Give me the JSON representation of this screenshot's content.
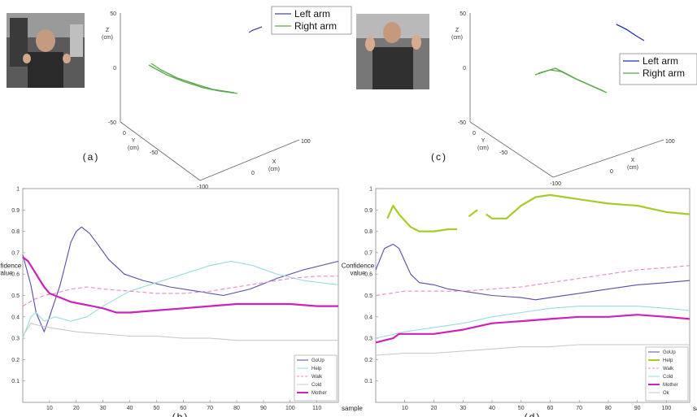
{
  "chart_data": [
    {
      "panel": "(a)",
      "type": "line3d",
      "axes": {
        "z_label": "Z\n(cm)",
        "z_ticks": [
          "50",
          "0",
          "-50"
        ],
        "y_label": "Y\n(cm)",
        "y_ticks": [
          "0",
          "-50"
        ],
        "x_label": "X\n(cm)",
        "x_ticks": [
          "100",
          "0",
          "-100"
        ]
      },
      "legend": [
        "Left arm",
        "Right arm"
      ],
      "legend_position": "top-right",
      "colors": {
        "Left arm": "#4a4a9a",
        "Right arm": "#5aa84a"
      }
    },
    {
      "panel": "(b)",
      "type": "line",
      "ylabel": "Confidence value",
      "xlabel": "sample",
      "xlim": [
        0,
        118
      ],
      "ylim": [
        0,
        1
      ],
      "xticks": [
        10,
        20,
        30,
        40,
        50,
        60,
        70,
        80,
        90,
        100,
        110
      ],
      "yticks": [
        0.1,
        0.2,
        0.3,
        0.4,
        0.5,
        0.6,
        0.7,
        0.8,
        0.9,
        1
      ],
      "legend_position": "bottom-right",
      "series": [
        {
          "name": "GoUp",
          "color": "#5a4aa8",
          "style": "solid",
          "x": [
            0,
            3,
            5,
            8,
            10,
            14,
            18,
            20,
            22,
            25,
            28,
            32,
            38,
            45,
            55,
            65,
            75,
            85,
            95,
            105,
            118
          ],
          "y": [
            0.69,
            0.55,
            0.42,
            0.33,
            0.4,
            0.55,
            0.75,
            0.8,
            0.82,
            0.79,
            0.74,
            0.67,
            0.6,
            0.57,
            0.54,
            0.52,
            0.5,
            0.53,
            0.58,
            0.62,
            0.66
          ]
        },
        {
          "name": "Help",
          "color": "#9adbe0",
          "style": "solid",
          "x": [
            0,
            3,
            5,
            8,
            12,
            18,
            24,
            30,
            40,
            50,
            60,
            70,
            78,
            86,
            95,
            105,
            118
          ],
          "y": [
            0.3,
            0.4,
            0.42,
            0.38,
            0.4,
            0.38,
            0.4,
            0.45,
            0.52,
            0.56,
            0.6,
            0.64,
            0.66,
            0.64,
            0.6,
            0.57,
            0.55
          ]
        },
        {
          "name": "Walk",
          "color": "#e888c8",
          "style": "dashed",
          "x": [
            0,
            4,
            8,
            12,
            18,
            24,
            30,
            40,
            50,
            60,
            70,
            80,
            90,
            100,
            110,
            118
          ],
          "y": [
            0.45,
            0.48,
            0.5,
            0.51,
            0.53,
            0.54,
            0.53,
            0.52,
            0.51,
            0.51,
            0.52,
            0.54,
            0.56,
            0.58,
            0.59,
            0.59
          ]
        },
        {
          "name": "Cold",
          "color": "#c9c9c9",
          "style": "solid",
          "x": [
            0,
            3,
            6,
            10,
            20,
            30,
            40,
            50,
            60,
            70,
            80,
            90,
            100,
            110,
            118
          ],
          "y": [
            0.31,
            0.37,
            0.36,
            0.35,
            0.33,
            0.32,
            0.31,
            0.31,
            0.3,
            0.3,
            0.29,
            0.29,
            0.29,
            0.29,
            0.29
          ]
        },
        {
          "name": "Mother",
          "color": "#cc22bb",
          "style": "bold",
          "x": [
            0,
            2,
            4,
            6,
            8,
            10,
            14,
            18,
            22,
            26,
            30,
            35,
            40,
            50,
            60,
            70,
            80,
            90,
            100,
            110,
            118
          ],
          "y": [
            0.68,
            0.66,
            0.62,
            0.58,
            0.54,
            0.51,
            0.49,
            0.47,
            0.46,
            0.45,
            0.44,
            0.42,
            0.42,
            0.43,
            0.44,
            0.45,
            0.46,
            0.46,
            0.46,
            0.45,
            0.45
          ]
        }
      ]
    },
    {
      "panel": "(c)",
      "type": "line3d",
      "axes": {
        "z_label": "Z\n(cm)",
        "z_ticks": [
          "50",
          "0",
          "-50"
        ],
        "y_label": "Y\n(cm)",
        "y_ticks": [
          "0",
          "-50"
        ],
        "x_label": "X\n(cm)",
        "x_ticks": [
          "100",
          "0",
          "-100"
        ]
      },
      "legend": [
        "Left arm",
        "Right arm"
      ],
      "legend_position": "right",
      "colors": {
        "Left arm": "#2233aa",
        "Right arm": "#5aa84a"
      }
    },
    {
      "panel": "(d)",
      "type": "line",
      "ylabel": "Confidence value",
      "xlabel": "sample",
      "xlim": [
        0,
        108
      ],
      "ylim": [
        0,
        1
      ],
      "xticks": [
        10,
        20,
        30,
        40,
        50,
        60,
        70,
        80,
        90,
        100
      ],
      "yticks": [
        0.1,
        0.2,
        0.3,
        0.4,
        0.5,
        0.6,
        0.7,
        0.8,
        0.9,
        1
      ],
      "legend_position": "bottom-right",
      "series": [
        {
          "name": "GoUp",
          "color": "#5a4aa8",
          "style": "solid",
          "x": [
            0,
            3,
            6,
            8,
            10,
            12,
            15,
            20,
            25,
            30,
            40,
            50,
            55,
            60,
            70,
            80,
            90,
            100,
            108
          ],
          "y": [
            0.62,
            0.72,
            0.74,
            0.72,
            0.66,
            0.6,
            0.56,
            0.55,
            0.53,
            0.52,
            0.5,
            0.49,
            0.48,
            0.49,
            0.51,
            0.53,
            0.55,
            0.56,
            0.57
          ]
        },
        {
          "name": "Help",
          "color": "#a6cc2a",
          "style": "bold",
          "x": [
            4,
            6,
            8,
            10,
            12,
            15,
            20,
            25,
            28,
            null,
            32,
            35,
            null,
            38,
            40,
            45,
            50,
            55,
            60,
            65,
            70,
            80,
            90,
            100,
            108
          ],
          "y": [
            0.86,
            0.92,
            0.88,
            0.85,
            0.82,
            0.8,
            0.8,
            0.81,
            0.81,
            null,
            0.87,
            0.9,
            null,
            0.88,
            0.86,
            0.86,
            0.92,
            0.96,
            0.97,
            0.96,
            0.95,
            0.93,
            0.92,
            0.89,
            0.88
          ]
        },
        {
          "name": "Walk",
          "color": "#e888c8",
          "style": "dashed",
          "x": [
            0,
            5,
            10,
            20,
            30,
            40,
            50,
            60,
            70,
            80,
            90,
            100,
            108
          ],
          "y": [
            0.5,
            0.51,
            0.52,
            0.52,
            0.52,
            0.53,
            0.54,
            0.56,
            0.58,
            0.6,
            0.62,
            0.63,
            0.64
          ]
        },
        {
          "name": "Cold",
          "color": "#9adbe0",
          "style": "solid",
          "x": [
            0,
            10,
            20,
            30,
            40,
            50,
            60,
            70,
            80,
            90,
            100,
            108
          ],
          "y": [
            0.3,
            0.33,
            0.35,
            0.37,
            0.4,
            0.42,
            0.44,
            0.45,
            0.45,
            0.45,
            0.44,
            0.43
          ]
        },
        {
          "name": "Mother",
          "color": "#cc22bb",
          "style": "bold",
          "x": [
            0,
            3,
            6,
            8,
            10,
            15,
            20,
            25,
            30,
            40,
            50,
            60,
            70,
            80,
            90,
            100,
            108
          ],
          "y": [
            0.28,
            0.29,
            0.3,
            0.32,
            0.32,
            0.32,
            0.32,
            0.33,
            0.34,
            0.37,
            0.38,
            0.39,
            0.4,
            0.4,
            0.41,
            0.4,
            0.39
          ]
        },
        {
          "name": "Ok",
          "color": "#c9c9c9",
          "style": "solid",
          "x": [
            0,
            10,
            20,
            30,
            40,
            50,
            60,
            70,
            80,
            90,
            100,
            108
          ],
          "y": [
            0.22,
            0.23,
            0.23,
            0.24,
            0.25,
            0.26,
            0.26,
            0.27,
            0.27,
            0.27,
            0.27,
            0.27
          ]
        }
      ]
    }
  ]
}
